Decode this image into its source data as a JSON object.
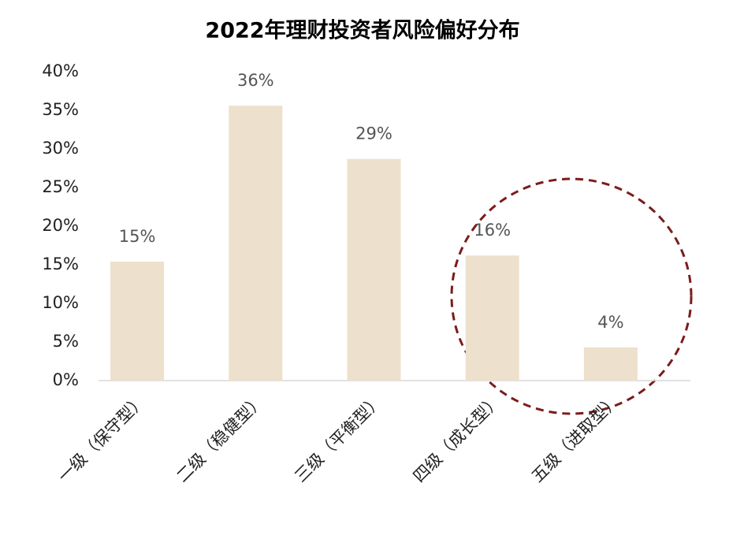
{
  "chart_data": {
    "type": "bar",
    "title": "2022年理财投资者风险偏好分布",
    "categories": [
      "一级（保守型）",
      "二级（稳健型）",
      "三级（平衡型）",
      "四级（成长型）",
      "五级（进取型）"
    ],
    "values": [
      15.4,
      35.6,
      28.7,
      16.2,
      4.3
    ],
    "value_labels": [
      "15%",
      "36%",
      "29%",
      "16%",
      "4%"
    ],
    "color": "#ede0cc",
    "ylim": [
      0,
      40
    ],
    "yticks": [
      {
        "value": 0,
        "label": "0%"
      },
      {
        "value": 5,
        "label": "5%"
      },
      {
        "value": 10,
        "label": "10%"
      },
      {
        "value": 15,
        "label": "15%"
      },
      {
        "value": 20,
        "label": "20%"
      },
      {
        "value": 25,
        "label": "25%"
      },
      {
        "value": 30,
        "label": "30%"
      },
      {
        "value": 35,
        "label": "35%"
      },
      {
        "value": 40,
        "label": "40%"
      }
    ],
    "grid": false
  }
}
